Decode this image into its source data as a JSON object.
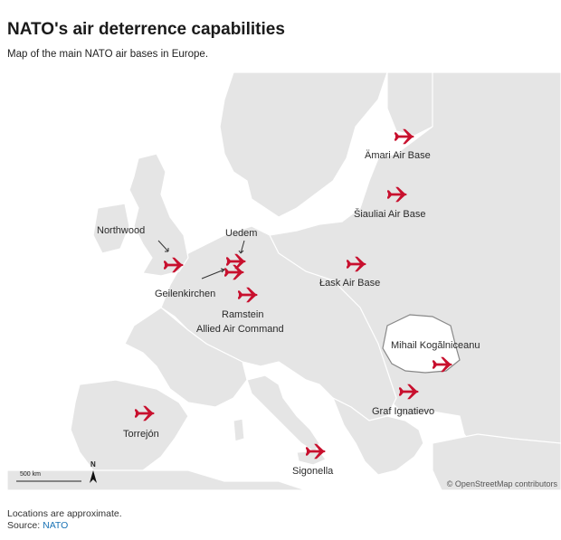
{
  "title": "NATO's air deterrence capabilities",
  "subtitle": "Map of the main NATO air bases in Europe.",
  "map": {
    "scale_label": "500 km",
    "north_label": "N",
    "attribution": "© OpenStreetMap contributors",
    "colors": {
      "water": "#ffffff",
      "land": "#e5e5e5",
      "borders": "#ffffff",
      "highlight_country_fill": "#ffffff",
      "highlight_country_stroke": "#888888",
      "marker": "#c8102e",
      "text": "#2a2a2a"
    },
    "highlighted_country": "Romania",
    "bases": [
      {
        "name": "Ämari Air Base",
        "icon": "fighter-jet-icon"
      },
      {
        "name": "Šiauliai Air Base",
        "icon": "fighter-jet-icon"
      },
      {
        "name": "Northwood",
        "icon": "fighter-jet-icon"
      },
      {
        "name": "Uedem",
        "icon": "fighter-jet-icon"
      },
      {
        "name": "Geilenkirchen",
        "icon": "fighter-jet-icon"
      },
      {
        "name": "Łask Air Base",
        "icon": "fighter-jet-icon"
      },
      {
        "name": "Ramstein",
        "subname": "Allied Air Command",
        "icon": "fighter-jet-icon"
      },
      {
        "name": "Mihail Kogălniceanu",
        "icon": "fighter-jet-icon"
      },
      {
        "name": "Graf Ignatievo",
        "icon": "fighter-jet-icon"
      },
      {
        "name": "Torrejón",
        "icon": "fighter-jet-icon"
      },
      {
        "name": "Sigonella",
        "icon": "fighter-jet-icon"
      }
    ]
  },
  "footer": {
    "note": "Locations are approximate.",
    "source_prefix": "Source:",
    "source_name": "NATO"
  }
}
